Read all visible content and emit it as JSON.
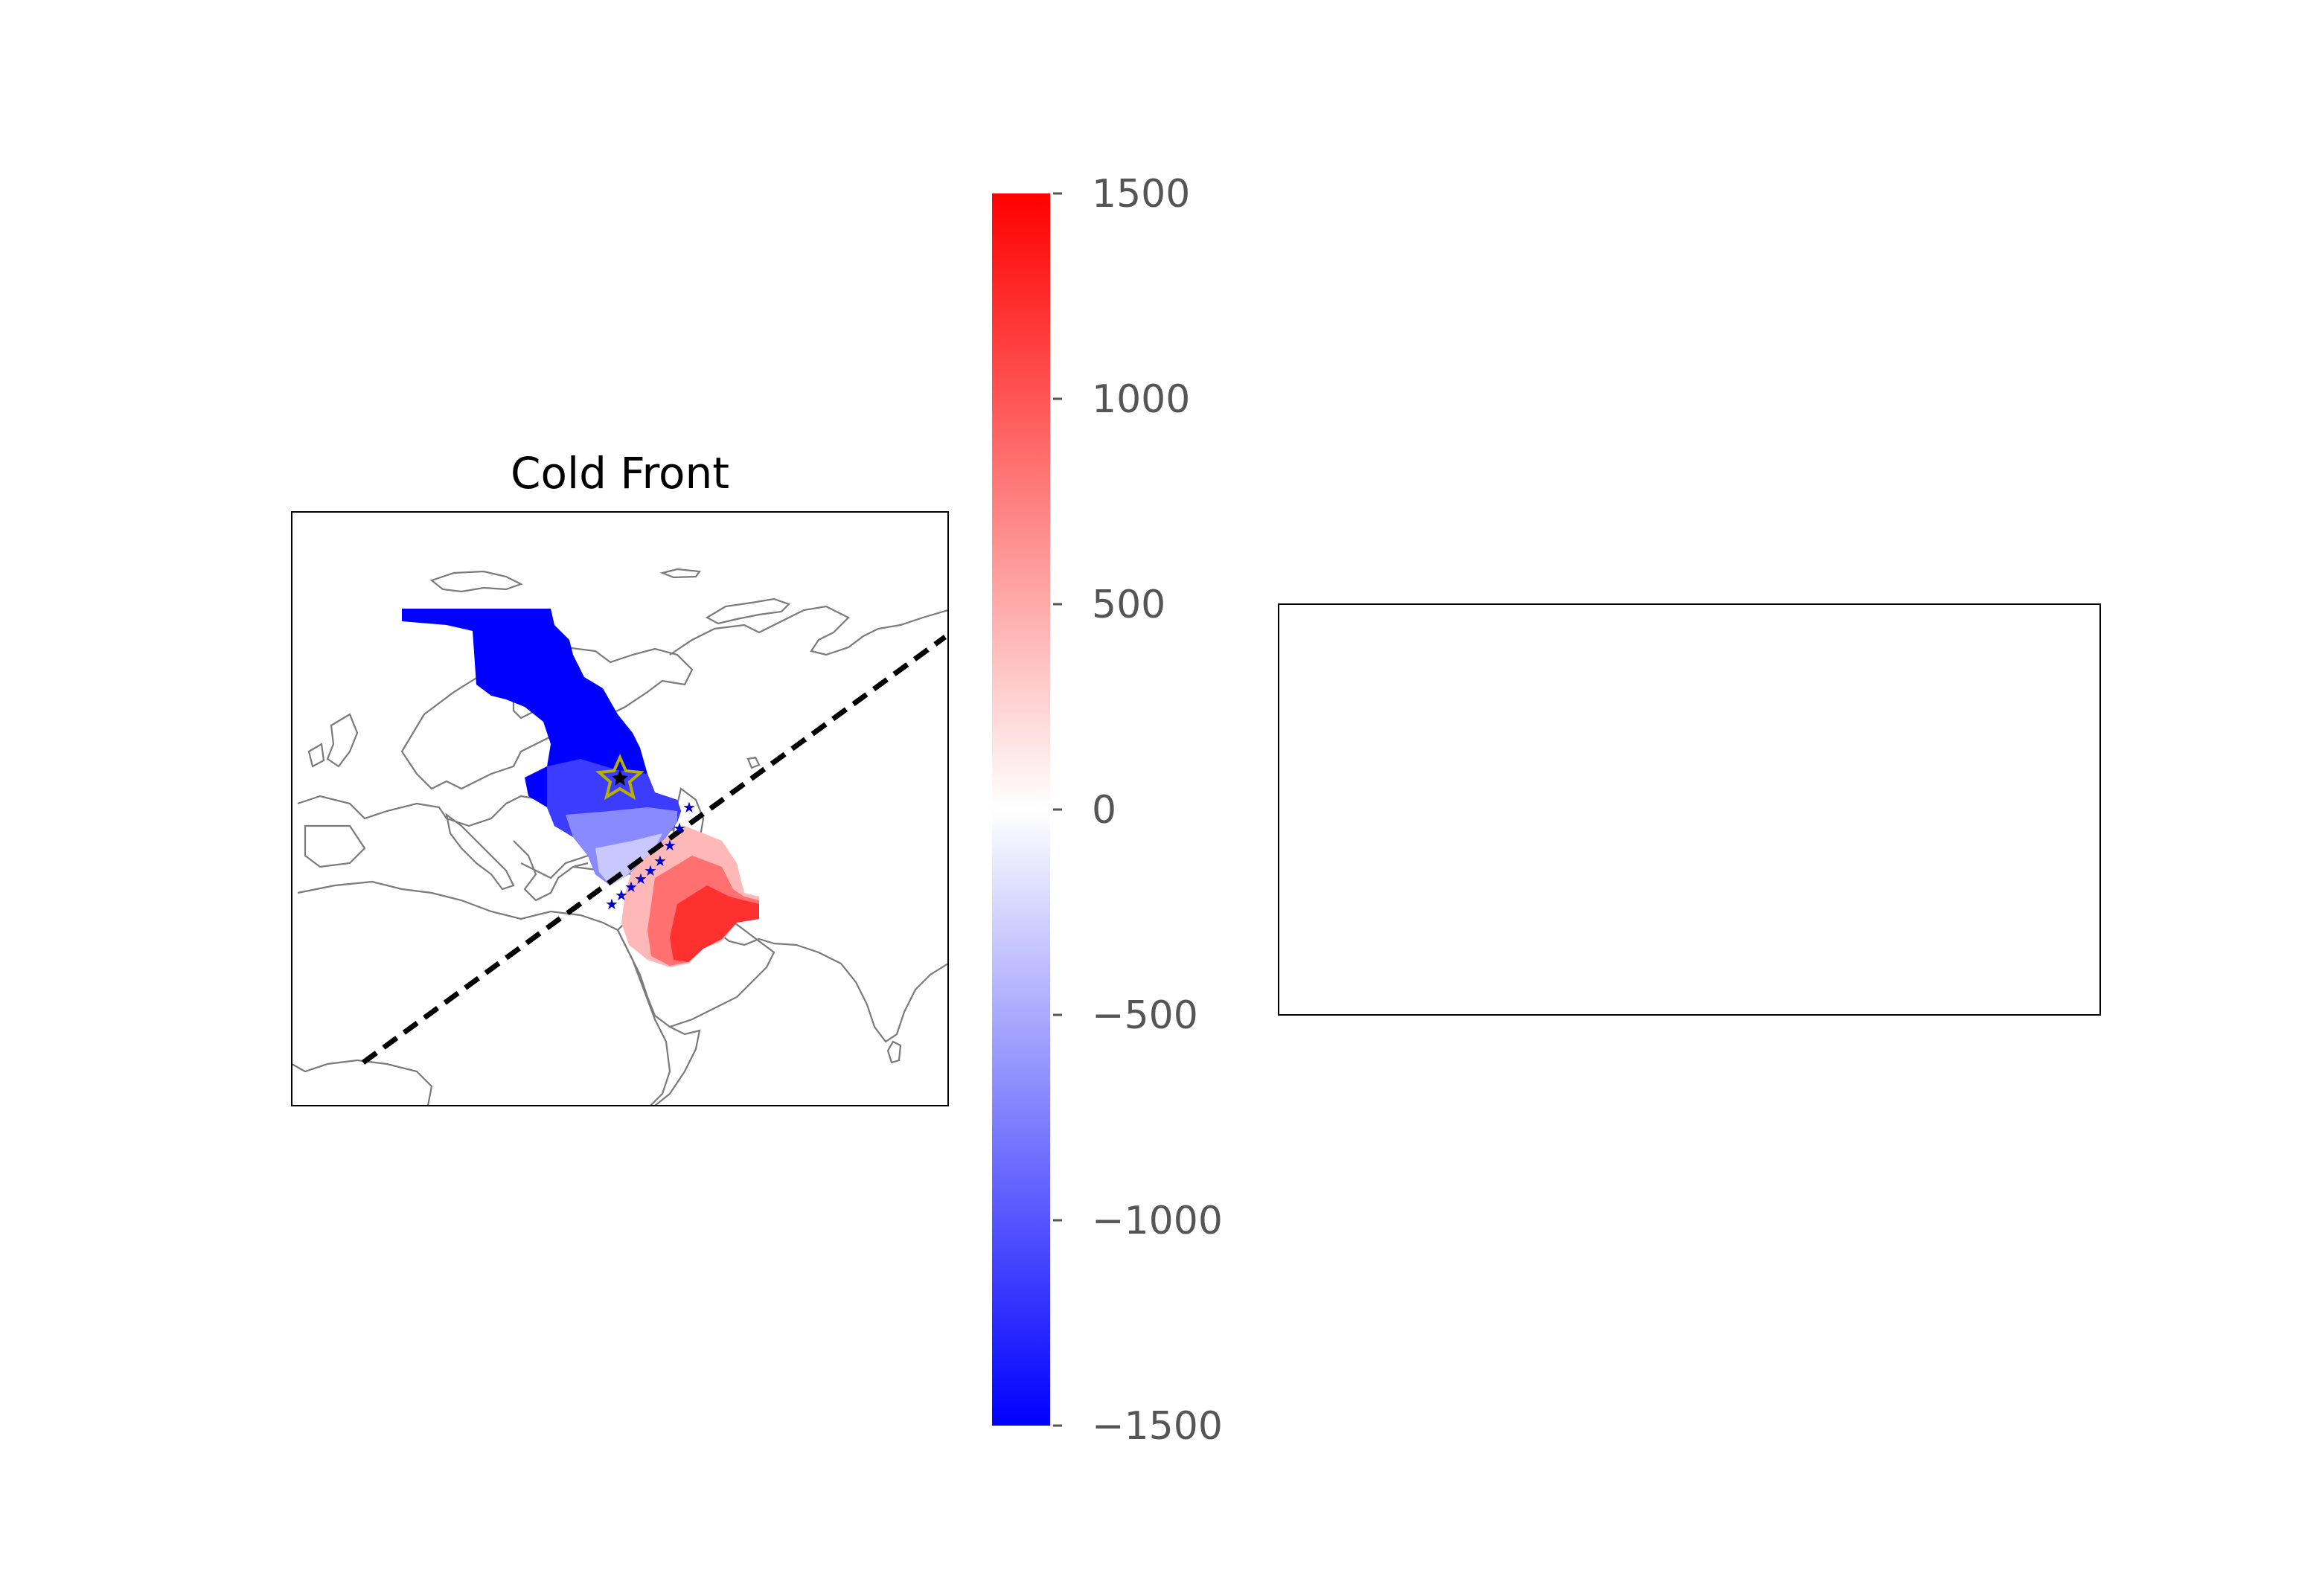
{
  "figure": {
    "map_panel": {
      "title": "Cold Front",
      "markers": {
        "center_star_color": "#b8b000",
        "front_star_color": "#0000cc",
        "front_line_color": "#000000"
      },
      "field_colors": {
        "negative": "#0000ff",
        "zero": "#ffffff",
        "positive": "#ff0000"
      }
    },
    "colorbar": {
      "min": -1500,
      "max": 1500,
      "ticks": [
        "1500",
        "1000",
        "500",
        "0",
        "−500",
        "−1000",
        "−1500"
      ],
      "tick_values": [
        1500,
        1000,
        500,
        0,
        -500,
        -1000,
        -1500
      ],
      "colormap": "bwr"
    },
    "empty_panel": {}
  }
}
